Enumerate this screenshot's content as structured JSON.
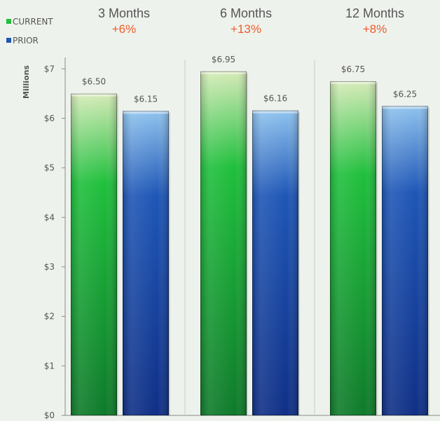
{
  "chart_data": {
    "type": "bar",
    "categories": [
      "3 Months",
      "6 Months",
      "12 Months"
    ],
    "changes": [
      "+6%",
      "+13%",
      "+8%"
    ],
    "series": [
      {
        "name": "CURRENT",
        "values": [
          6.5,
          6.95,
          6.75
        ],
        "labels": [
          "$6.50",
          "$6.95",
          "$6.75"
        ],
        "color_top": "#d6ebb8",
        "color_mid": "#1fbf3c",
        "color_bottom": "#0e7a2a"
      },
      {
        "name": "PRIOR",
        "values": [
          6.15,
          6.16,
          6.25
        ],
        "labels": [
          "$6.15",
          "$6.16",
          "$6.25"
        ],
        "color_top": "#8fc3ee",
        "color_mid": "#1e56b6",
        "color_bottom": "#0f2f86"
      }
    ],
    "ylabel": "Millions",
    "ylim": [
      0,
      7.4
    ],
    "yticks": [
      0,
      1,
      2,
      3,
      4,
      5,
      6,
      7
    ],
    "ytick_labels": [
      "$0",
      "$1",
      "$2",
      "$3",
      "$4",
      "$5",
      "$6",
      "$7"
    ],
    "legend_position": "top-left",
    "change_color": "#ef5a2a",
    "grid": false
  }
}
